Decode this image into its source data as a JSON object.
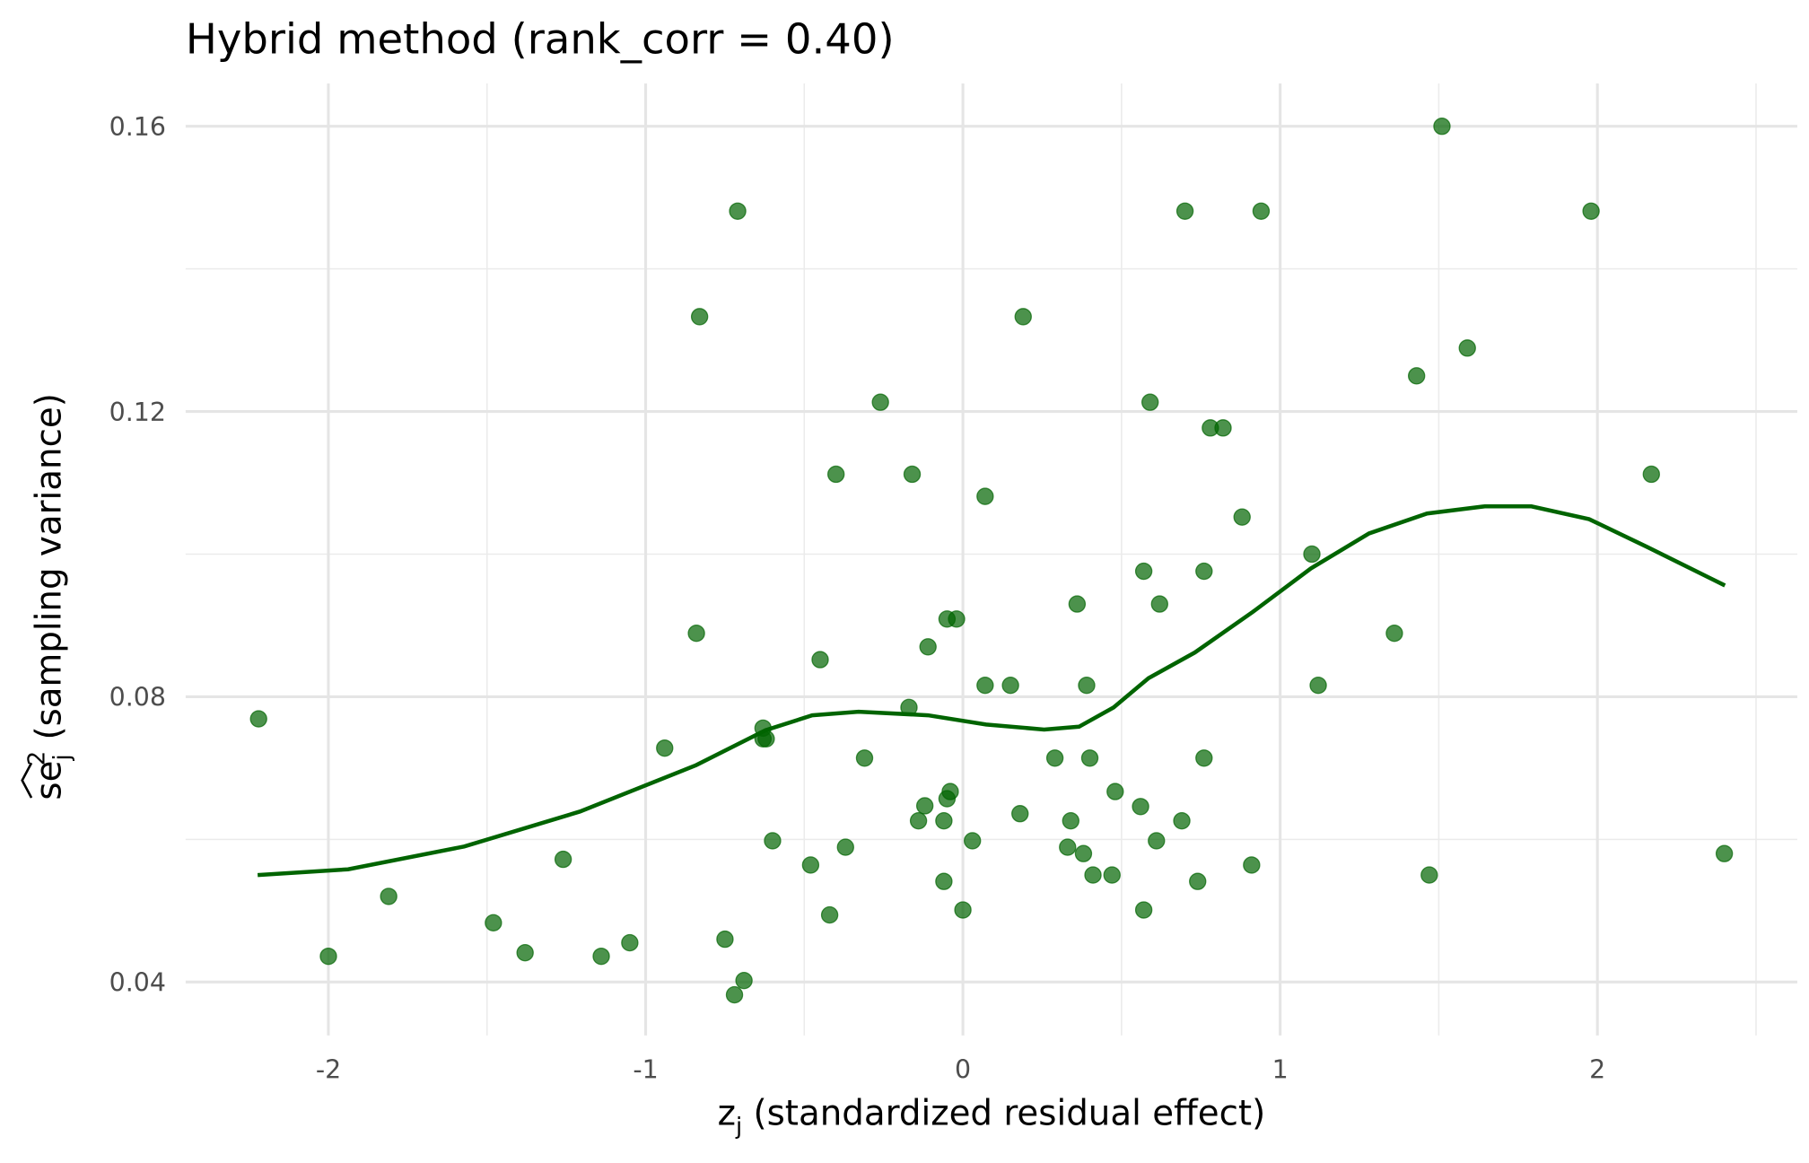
{
  "chart_data": {
    "type": "scatter",
    "title": "Hybrid method (rank_corr = 0.40)",
    "xlabel": [
      "z",
      "j",
      " (standardized residual effect)"
    ],
    "ylabel": [
      "se",
      "j",
      "2",
      " (sampling variance)"
    ],
    "xlim": [
      -2.45,
      2.63
    ],
    "ylim": [
      0.0325,
      0.166
    ],
    "xticks": [
      -2,
      -1,
      0,
      1,
      2
    ],
    "yticks": [
      0.04,
      0.08,
      0.12,
      0.16
    ],
    "grid": true,
    "series": [
      {
        "type": "scatter",
        "color": "#006400",
        "opacity": 0.7,
        "x": [
          -2.22,
          -2.0,
          -1.81,
          -1.48,
          -1.38,
          -1.26,
          -1.14,
          -1.05,
          -0.94,
          -0.84,
          -0.83,
          -0.75,
          -0.71,
          -0.72,
          -0.69,
          -0.63,
          -0.63,
          -0.62,
          -0.6,
          -0.48,
          -0.45,
          -0.42,
          -0.4,
          -0.37,
          -0.31,
          -0.26,
          -0.17,
          -0.16,
          -0.14,
          -0.12,
          -0.11,
          -0.06,
          -0.06,
          -0.05,
          -0.05,
          -0.04,
          -0.02,
          0.0,
          0.03,
          0.07,
          0.07,
          0.15,
          0.18,
          0.19,
          0.29,
          0.33,
          0.34,
          0.36,
          0.38,
          0.39,
          0.4,
          0.41,
          0.47,
          0.48,
          0.56,
          0.57,
          0.57,
          0.59,
          0.61,
          0.62,
          0.69,
          0.7,
          0.74,
          0.76,
          0.76,
          0.78,
          0.82,
          0.88,
          0.91,
          0.94,
          1.1,
          1.12,
          1.36,
          1.43,
          1.47,
          1.51,
          1.59,
          1.98,
          2.17,
          2.4
        ],
        "values": [
          0.0769,
          0.0436,
          0.052,
          0.0483,
          0.0441,
          0.0572,
          0.0436,
          0.0455,
          0.0728,
          0.0889,
          0.1333,
          0.046,
          0.1481,
          0.0382,
          0.0402,
          0.0756,
          0.0741,
          0.0741,
          0.0598,
          0.0564,
          0.0852,
          0.0494,
          0.1112,
          0.0589,
          0.0714,
          0.1213,
          0.0785,
          0.1112,
          0.0626,
          0.0647,
          0.087,
          0.0541,
          0.0626,
          0.0909,
          0.0657,
          0.0667,
          0.0909,
          0.0501,
          0.0598,
          0.1081,
          0.0816,
          0.0816,
          0.0636,
          0.1333,
          0.0714,
          0.0589,
          0.0626,
          0.093,
          0.058,
          0.0816,
          0.0714,
          0.055,
          0.055,
          0.0667,
          0.0646,
          0.0976,
          0.0501,
          0.1213,
          0.0598,
          0.093,
          0.0626,
          0.1481,
          0.0541,
          0.0714,
          0.0976,
          0.1177,
          0.1177,
          0.1052,
          0.0564,
          0.1481,
          0.1,
          0.0816,
          0.0889,
          0.125,
          0.055,
          0.16,
          0.1289,
          0.1481,
          0.1112,
          0.058
        ]
      },
      {
        "type": "line",
        "color": "#006400",
        "x": [
          -2.223,
          -1.938,
          -1.572,
          -1.207,
          -0.841,
          -0.622,
          -0.475,
          -0.329,
          -0.11,
          0.073,
          0.256,
          0.366,
          0.475,
          0.585,
          0.731,
          0.914,
          1.097,
          1.28,
          1.463,
          1.645,
          1.792,
          1.974,
          2.157,
          2.402
        ],
        "values": [
          0.055,
          0.0558,
          0.059,
          0.0639,
          0.0704,
          0.0753,
          0.0774,
          0.0779,
          0.0774,
          0.0761,
          0.0754,
          0.0758,
          0.0785,
          0.0826,
          0.0862,
          0.0919,
          0.098,
          0.1029,
          0.1057,
          0.1067,
          0.1067,
          0.1049,
          0.101,
          0.0956
        ]
      }
    ]
  }
}
